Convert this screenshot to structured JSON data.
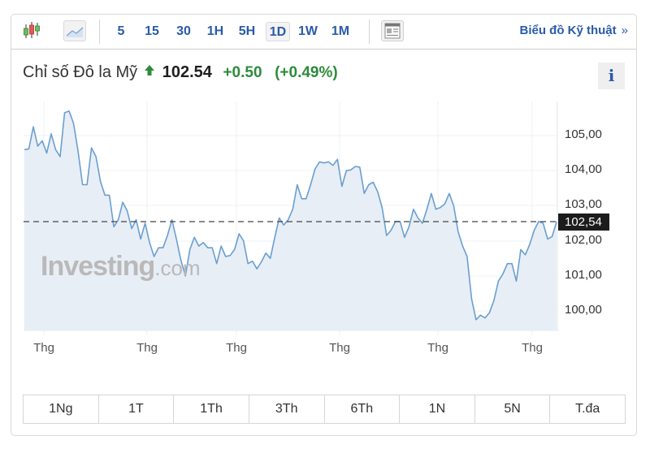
{
  "toolbar": {
    "chart_types": [
      {
        "icon": "candlestick-icon",
        "active": false
      },
      {
        "icon": "area-chart-icon",
        "active": true
      }
    ],
    "timeframes": [
      {
        "label": "5",
        "active": false
      },
      {
        "label": "15",
        "active": false
      },
      {
        "label": "30",
        "active": false
      },
      {
        "label": "1H",
        "active": false
      },
      {
        "label": "5H",
        "active": false
      },
      {
        "label": "1D",
        "active": true
      },
      {
        "label": "1W",
        "active": false
      },
      {
        "label": "1M",
        "active": false
      }
    ],
    "layout_icon": "layout-icon",
    "technical_link": "Biểu đồ Kỹ thuật",
    "technical_chevron": "»"
  },
  "quote": {
    "name": "Chỉ số Đô la Mỹ",
    "direction_icon": "arrow-up-icon",
    "last": "102.54",
    "change": "+0.50",
    "change_pct": "(+0.49%)",
    "info_label": "i"
  },
  "colors": {
    "accent": "#2a5ba8",
    "positive": "#2e8b3b",
    "line": "#6a9fd0",
    "area_fill": "#e8eef6",
    "price_tag_bg": "#1c1c1c"
  },
  "watermark": {
    "brand": "Investing",
    "suffix": ".com"
  },
  "price_tag": "102,54",
  "ranges": [
    {
      "label": "1Ng"
    },
    {
      "label": "1T"
    },
    {
      "label": "1Th"
    },
    {
      "label": "3Th"
    },
    {
      "label": "6Th"
    },
    {
      "label": "1N"
    },
    {
      "label": "5N"
    },
    {
      "label": "T.đa"
    }
  ],
  "chart_data": {
    "type": "area",
    "title": "Chỉ số Đô la Mỹ",
    "xlabel": "",
    "ylabel": "",
    "x_tick_labels": [
      "Thg",
      "Thg",
      "Thg",
      "Thg",
      "Thg",
      "Thg"
    ],
    "y_tick_labels": [
      "105,00",
      "104,00",
      "103,00",
      "102,00",
      "101,00",
      "100,00"
    ],
    "ylim": [
      99.45,
      105.9
    ],
    "grid": true,
    "legend": "none",
    "reference_line": {
      "value": 102.54,
      "label": "102,54",
      "style": "dashed"
    },
    "series": [
      {
        "name": "Chỉ số Đô la Mỹ",
        "values": [
          104.6,
          104.62,
          105.25,
          104.7,
          104.85,
          104.5,
          105.05,
          104.6,
          104.4,
          105.65,
          105.7,
          105.35,
          104.55,
          103.6,
          103.6,
          104.65,
          104.4,
          103.7,
          103.3,
          103.3,
          102.4,
          102.6,
          103.1,
          102.85,
          102.35,
          102.6,
          102.05,
          102.5,
          101.95,
          101.55,
          101.8,
          101.8,
          102.15,
          102.6,
          102.05,
          101.45,
          101.0,
          101.75,
          102.1,
          101.85,
          101.95,
          101.8,
          101.8,
          101.35,
          101.85,
          101.55,
          101.58,
          101.75,
          102.2,
          102.0,
          101.35,
          101.42,
          101.2,
          101.4,
          101.65,
          101.5,
          102.1,
          102.65,
          102.45,
          102.6,
          102.9,
          103.6,
          103.2,
          103.2,
          103.6,
          104.05,
          104.25,
          104.22,
          104.25,
          104.15,
          104.32,
          103.55,
          104.0,
          104.02,
          104.12,
          104.1,
          103.35,
          103.6,
          103.67,
          103.4,
          102.95,
          102.15,
          102.3,
          102.55,
          102.55,
          102.1,
          102.4,
          102.9,
          102.65,
          102.5,
          102.9,
          103.35,
          102.9,
          102.95,
          103.05,
          103.35,
          103.0,
          102.25,
          101.85,
          101.55,
          100.35,
          99.75,
          99.88,
          99.8,
          99.95,
          100.3,
          100.85,
          101.05,
          101.35,
          101.35,
          100.85,
          101.75,
          101.6,
          101.9,
          102.3,
          102.55,
          102.5,
          102.05,
          102.12,
          102.54
        ]
      }
    ]
  }
}
